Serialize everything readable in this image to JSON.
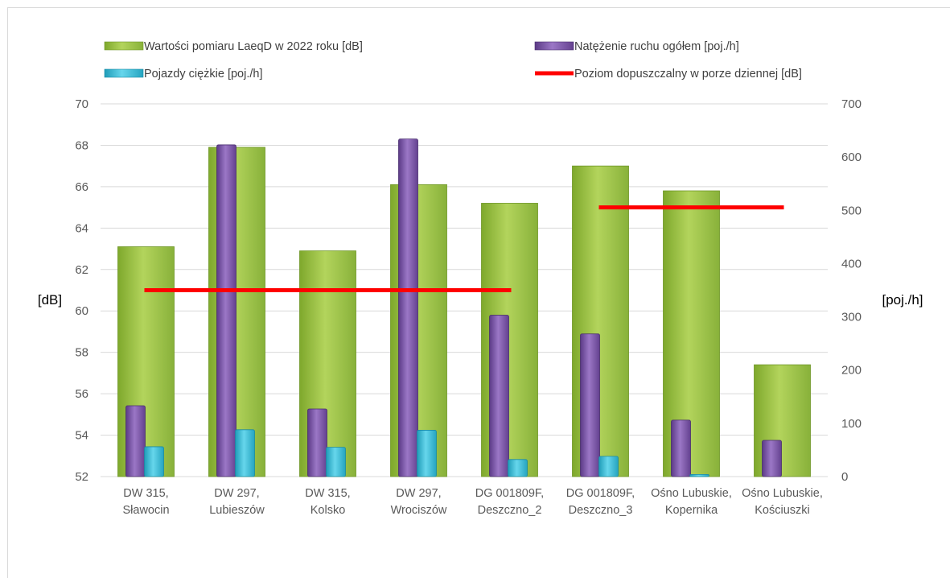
{
  "chart_data": {
    "type": "bar",
    "title": "",
    "categories": [
      [
        "DW 315,",
        "Sławocin"
      ],
      [
        "DW 297,",
        "Lubieszów"
      ],
      [
        "DW 315,",
        "Kolsko"
      ],
      [
        "DW 297,",
        "Wrociszów"
      ],
      [
        "DG 001809F,",
        "Deszczno_2"
      ],
      [
        "DG 001809F,",
        "Deszczno_3"
      ],
      [
        "Ośno Lubuskie,",
        "Kopernika"
      ],
      [
        "Ośno Lubuskie,",
        "Kościuszki"
      ]
    ],
    "ylabel_left": "[dB]",
    "ylabel_right": "[poj./h]",
    "ylim_left": [
      52,
      70
    ],
    "ylim_right": [
      0,
      700
    ],
    "yticks_left": [
      "52",
      "54",
      "56",
      "58",
      "60",
      "62",
      "64",
      "66",
      "68",
      "70"
    ],
    "yticks_right": [
      "0",
      "100",
      "200",
      "300",
      "400",
      "500",
      "600",
      "700"
    ],
    "grid": true,
    "legend_position": "top",
    "series": [
      {
        "name": "Wartości pomiaru LaeqD w 2022 roku [dB]",
        "axis": "left",
        "kind": "bar",
        "color": "#9bc442",
        "values": [
          63.1,
          67.9,
          62.9,
          66.1,
          65.2,
          67.0,
          65.8,
          57.4
        ]
      },
      {
        "name": "Natężenie ruchu ogółem [poj./h]",
        "axis": "right",
        "kind": "bar",
        "color": "#7a52a8",
        "values": [
          133,
          623,
          127,
          634,
          303,
          268,
          106,
          68
        ]
      },
      {
        "name": "Pojazdy ciężkie [poj./h]",
        "axis": "right",
        "kind": "bar",
        "color": "#3fbcd6",
        "values": [
          56,
          88,
          55,
          87,
          32,
          38,
          4,
          null
        ]
      },
      {
        "name": "Poziom dopuszczalny w porze dziennej [dB]",
        "axis": "left",
        "kind": "line",
        "color": "#ff0000",
        "segments": [
          {
            "from": 0,
            "to": 4,
            "value": 61
          },
          {
            "from": 5,
            "to": 7,
            "value": 65
          }
        ]
      }
    ]
  }
}
